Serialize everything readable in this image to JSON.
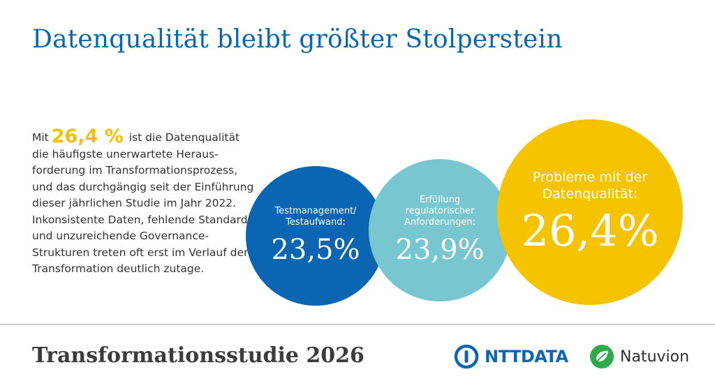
{
  "title": "Datenqualität bleibt größter Stolperstein",
  "intro": {
    "prefix": "Mit",
    "highlight": "26,4 %",
    "text": "ist die Datenqualität die häufigste unerwartete Heraus­forderung im Transformations­prozess, und das durchgängig seit der Einführung dieser jährlichen Studie im Jahr 2022. Inkonsistente Daten, fehlende Standards und unzureichende Governance-Strukturen treten oft erst im Verlauf der Transformation deutlich zutage."
  },
  "circles": [
    {
      "label": "Testmanagement/ Testaufwand:",
      "value": "23,5%",
      "color": "#0a66b2"
    },
    {
      "label": "Erfüllung regulatorischer Anforderungen:",
      "value": "23,9%",
      "color": "#78c7d0"
    },
    {
      "label": "Probleme mit der Datenqualität:",
      "value": "26,4%",
      "color": "#f5c300"
    }
  ],
  "footer": {
    "title": "Transformationsstudie 2026",
    "logo_ntt": "NTTDATA",
    "logo_natuvion": "Natuvion"
  }
}
